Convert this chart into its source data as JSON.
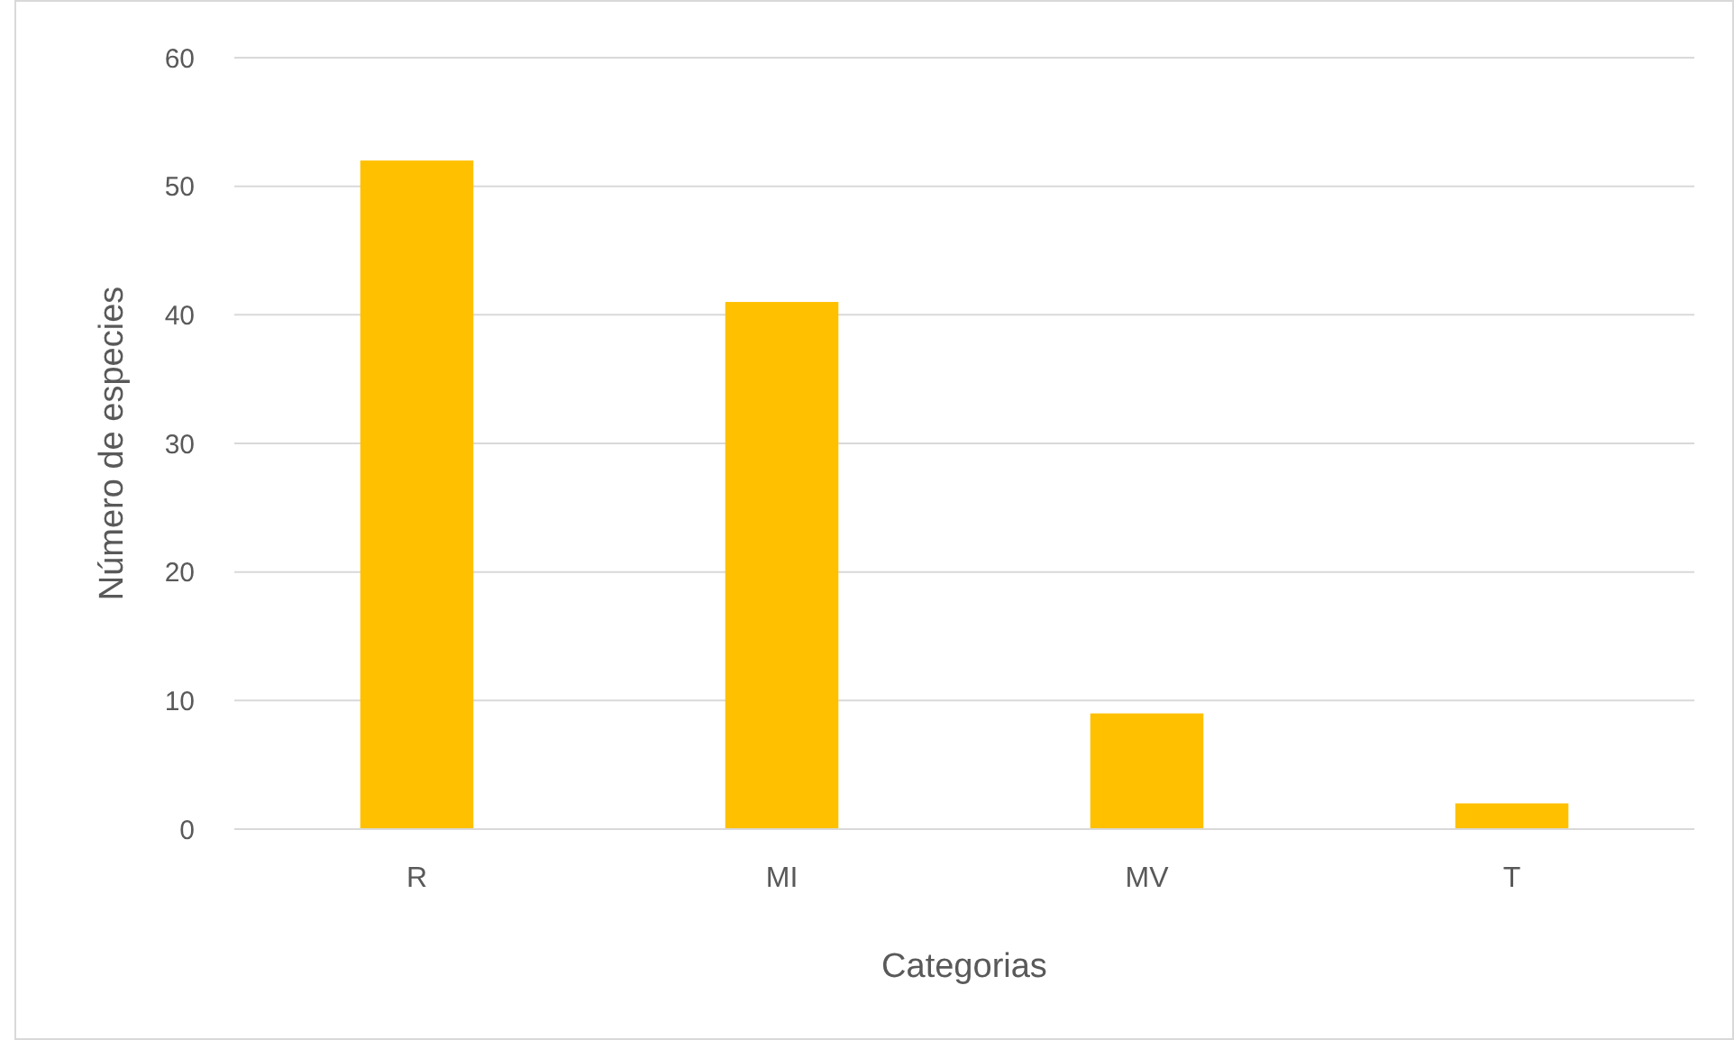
{
  "chart_data": {
    "type": "bar",
    "xlabel": "Categorias",
    "ylabel": "Número de especies",
    "categories": [
      "R",
      "MI",
      "MV",
      "T"
    ],
    "values": [
      52,
      41,
      9,
      2
    ],
    "color": "#ffc000",
    "ylim": [
      0,
      60
    ],
    "yticks": [
      0,
      10,
      20,
      30,
      40,
      50,
      60
    ],
    "grid": "y"
  }
}
